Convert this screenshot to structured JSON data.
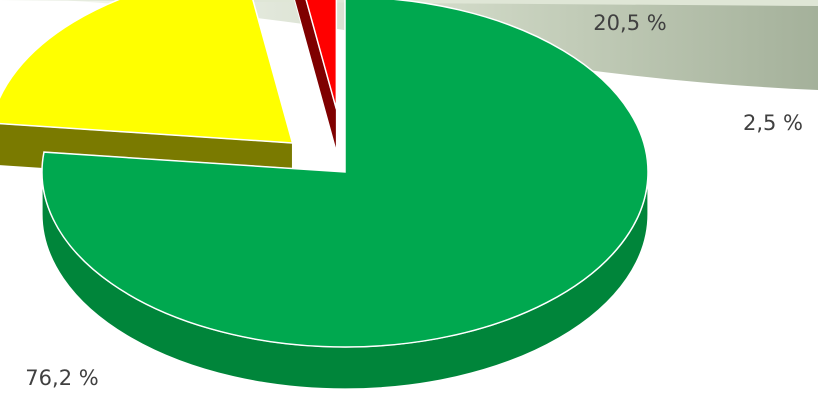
{
  "chart_data": {
    "type": "pie",
    "slices": [
      {
        "value": 76.2,
        "label": "76,2 %",
        "color": "#00a84f",
        "side_color": "#00853a"
      },
      {
        "value": 20.5,
        "label": "20,5 %",
        "color": "#ffff00",
        "side_color": "#7a7a00"
      },
      {
        "value": 2.5,
        "label": "2,5 %",
        "color": "#ff0000",
        "side_color": "#7f0000"
      }
    ],
    "style": "3d-exploded"
  }
}
